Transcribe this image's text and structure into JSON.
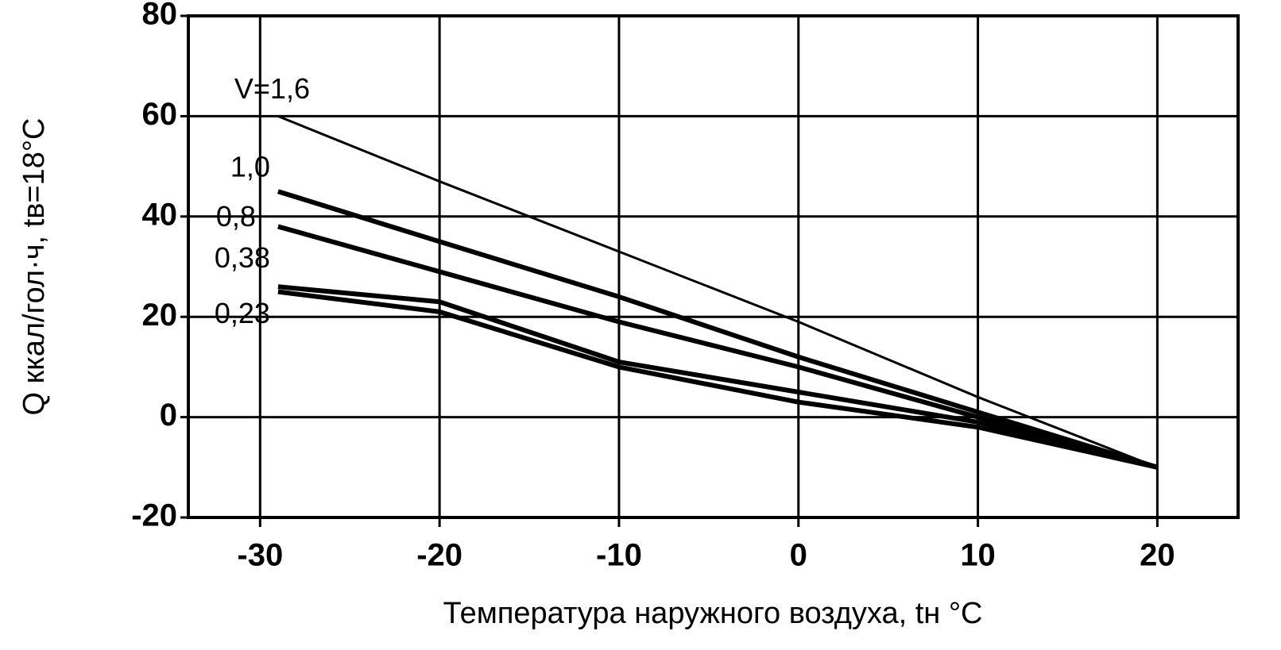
{
  "chart_data": {
    "type": "line",
    "x_label": "Температура наружного воздуха, tн °C",
    "y_label": "Q ккал/гол·ч, tв=18°C",
    "x": [
      -29,
      -20,
      -10,
      0,
      10,
      20
    ],
    "series": [
      {
        "name": "V=1,6",
        "color": "#000000",
        "values": [
          60,
          47,
          33,
          19,
          4,
          -10
        ]
      },
      {
        "name": "1,0",
        "color": "#000000",
        "values": [
          45,
          35,
          24,
          12,
          1,
          -10
        ]
      },
      {
        "name": "0,8",
        "color": "#000000",
        "values": [
          38,
          29,
          19,
          10,
          0,
          -10
        ]
      },
      {
        "name": "0,38",
        "color": "#000000",
        "values": [
          26,
          23,
          11,
          5,
          -1,
          -10
        ]
      },
      {
        "name": "0,23",
        "color": "#000000",
        "values": [
          25,
          21,
          10,
          3,
          -2,
          -10
        ]
      }
    ],
    "xlim": [
      -34,
      24.5
    ],
    "xticks": [
      -30,
      -20,
      -10,
      0,
      10,
      20
    ],
    "ylim": [
      -20,
      80
    ],
    "yticks": [
      -20,
      0,
      20,
      40,
      60,
      80
    ],
    "grid": true
  }
}
